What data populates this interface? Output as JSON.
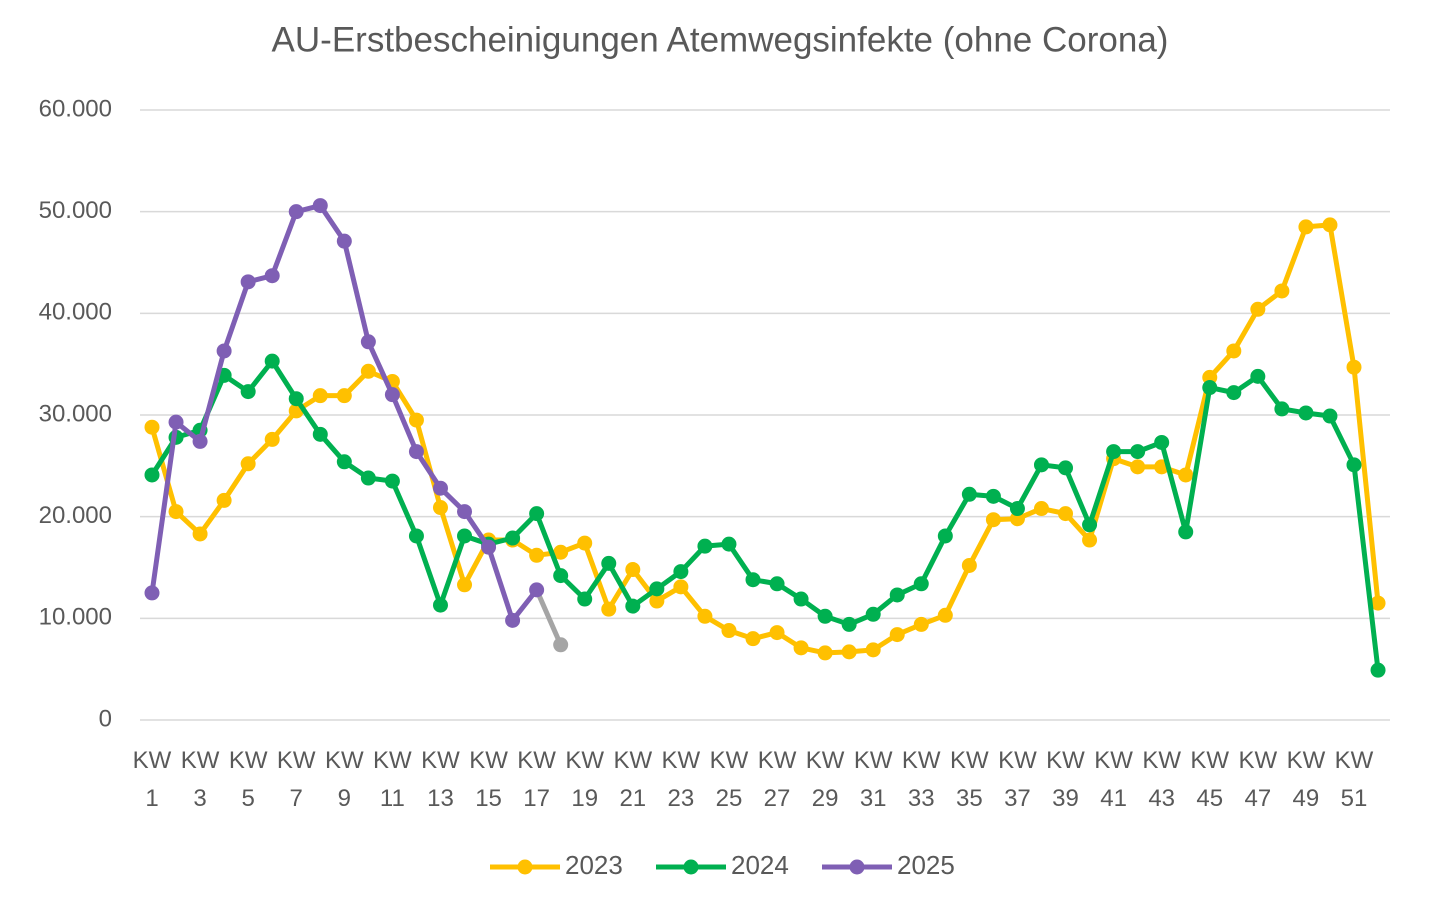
{
  "chart_data": {
    "type": "line",
    "title": "AU-Erstbescheinigungen Atemwegsinfekte (ohne Corona)",
    "categories": [
      "KW 1",
      null,
      "KW 3",
      null,
      "KW 5",
      null,
      "KW 7",
      null,
      "KW 9",
      null,
      "KW 11",
      null,
      "KW 13",
      null,
      "KW 15",
      null,
      "KW 17",
      null,
      "KW 19",
      null,
      "KW 21",
      null,
      "KW 23",
      null,
      "KW 25",
      null,
      "KW 27",
      null,
      "KW 29",
      null,
      "KW 31",
      null,
      "KW 33",
      null,
      "KW 35",
      null,
      "KW 37",
      null,
      "KW 39",
      null,
      "KW 41",
      null,
      "KW 43",
      null,
      "KW 45",
      null,
      "KW 47",
      null,
      "KW 49",
      null,
      "KW 51",
      null
    ],
    "series": [
      {
        "name": "2023",
        "color": "#ffc000",
        "values": [
          28800,
          20500,
          18300,
          21600,
          25200,
          27600,
          30400,
          31900,
          31900,
          34300,
          33300,
          29500,
          20900,
          13300,
          17700,
          17700,
          16200,
          16500,
          17400,
          10900,
          14800,
          11700,
          13100,
          10200,
          8800,
          8000,
          8600,
          7100,
          6600,
          6700,
          6900,
          8400,
          9400,
          10300,
          15200,
          19700,
          19800,
          20800,
          20300,
          17700,
          25700,
          24900,
          24900,
          24100,
          33700,
          36300,
          40400,
          42200,
          48500,
          48700,
          34700,
          11500
        ]
      },
      {
        "name": "2024",
        "color": "#00b050",
        "values": [
          24100,
          27800,
          28500,
          33900,
          32300,
          35300,
          31600,
          28100,
          25400,
          23800,
          23500,
          18100,
          11300,
          18100,
          17300,
          17900,
          20300,
          14200,
          11900,
          15400,
          11200,
          12900,
          14600,
          17100,
          17300,
          13800,
          13400,
          11900,
          10200,
          9400,
          10400,
          12300,
          13400,
          18100,
          22200,
          22000,
          20800,
          25100,
          24800,
          19200,
          26400,
          26400,
          27300,
          18500,
          32700,
          32200,
          33800,
          30600,
          30200,
          29900,
          25100,
          4900
        ]
      },
      {
        "name": "2025",
        "color": "#7f5fb4",
        "last_segment_color": "#a5a5a5",
        "values": [
          12500,
          29300,
          27400,
          36300,
          43100,
          43700,
          50000,
          50600,
          47100,
          37200,
          32000,
          26400,
          22800,
          20500,
          17000,
          9800,
          12800,
          7400,
          null,
          null,
          null,
          null,
          null,
          null,
          null,
          null,
          null,
          null,
          null,
          null,
          null,
          null,
          null,
          null,
          null,
          null,
          null,
          null,
          null,
          null,
          null,
          null,
          null,
          null,
          null,
          null,
          null,
          null,
          null,
          null,
          null,
          null
        ]
      }
    ],
    "ylim": [
      0,
      60000
    ],
    "yticks": [
      0,
      {
        "value": 10000,
        "label": "10.000"
      },
      {
        "value": 20000,
        "label": "20.000"
      },
      {
        "value": 30000,
        "label": "30.000"
      },
      {
        "value": 40000,
        "label": "40.000"
      },
      {
        "value": 50000,
        "label": "50.000"
      },
      {
        "value": 60000,
        "label": "60.000"
      }
    ],
    "grid": true,
    "legend": "bottom"
  }
}
